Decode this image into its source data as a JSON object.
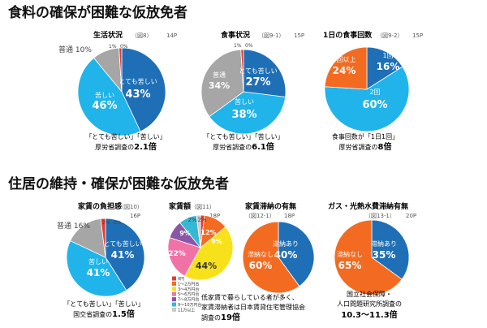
{
  "section1_title": "食料の確保が困難な仮放免者",
  "section2_title": "住居の維持・確保が困難な仮放免者",
  "colors": {
    "dark_blue": "#1f6fb6",
    "light_blue": "#20b4ea",
    "gray": "#a6a6a6",
    "red": "#e53935",
    "orange": "#f26b21",
    "yellow": "#f7e11b",
    "green": "#49b86a",
    "pink": "#f173a6",
    "purple": "#8a56a7",
    "cyan": "#35b8d4",
    "light_gray": "#c8c8c8"
  },
  "chart_data": [
    {
      "id": "seikatsu",
      "type": "pie",
      "title": "生活状況",
      "ref": "（図8）",
      "page": "14P",
      "slices": [
        {
          "label": "とても苦しい",
          "value": 43,
          "color": "#1f6fb6"
        },
        {
          "label": "苦しい",
          "value": 46,
          "color": "#20b4ea"
        },
        {
          "label": "普通",
          "value": 10,
          "color": "#a6a6a6"
        },
        {
          "label": "",
          "value": 1,
          "color": "#e53935"
        },
        {
          "label": "",
          "value": 0,
          "color": "#f26b21"
        }
      ],
      "slice_texts": [
        "とても苦しい",
        "43%",
        "苦しい",
        "46%",
        "普通 10%",
        "1%",
        "0%"
      ],
      "caption": [
        "「とても苦しい」「苦しい」",
        "厚労省調査の",
        "2.1倍"
      ]
    },
    {
      "id": "shokuji",
      "type": "pie",
      "title": "食事状況",
      "ref": "（図9-1）",
      "page": "15P",
      "slices": [
        {
          "label": "とても苦しい",
          "value": 27,
          "color": "#1f6fb6"
        },
        {
          "label": "苦しい",
          "value": 38,
          "color": "#20b4ea"
        },
        {
          "label": "普通",
          "value": 34,
          "color": "#a6a6a6"
        },
        {
          "label": "",
          "value": 1,
          "color": "#e53935"
        },
        {
          "label": "",
          "value": 0,
          "color": "#f26b21"
        }
      ],
      "slice_texts": [
        "とても苦しい",
        "27%",
        "苦しい",
        "38%",
        "普通",
        "34%",
        "1%",
        "0%"
      ],
      "caption": [
        "「とても苦しい」「苦しい」",
        "厚労省調査の",
        "6.1倍"
      ]
    },
    {
      "id": "kaisuu",
      "type": "pie",
      "title": "1日の食事回数",
      "ref": "（図9-2）",
      "page": "15P",
      "slices": [
        {
          "label": "1回",
          "value": 16,
          "color": "#1f6fb6"
        },
        {
          "label": "2回",
          "value": 60,
          "color": "#20b4ea"
        },
        {
          "label": "3回以上",
          "value": 24,
          "color": "#f26b21"
        }
      ],
      "slice_texts": [
        "1回",
        "16%",
        "2回",
        "60%",
        "3回以上",
        "24%"
      ],
      "caption": [
        "食事回数が「1日1回」",
        "厚労省調査の",
        "8倍"
      ]
    },
    {
      "id": "yachin_futan",
      "type": "pie",
      "title": "家賃の負担感",
      "ref": "（図10）",
      "page": "16P",
      "slices": [
        {
          "label": "とても苦しい",
          "value": 41,
          "color": "#1f6fb6"
        },
        {
          "label": "苦しい",
          "value": 41,
          "color": "#20b4ea"
        },
        {
          "label": "普通",
          "value": 16,
          "color": "#a6a6a6"
        },
        {
          "label": "",
          "value": 2,
          "color": "#e53935"
        },
        {
          "label": "",
          "value": 0,
          "color": "#f26b21"
        }
      ],
      "slice_texts": [
        "とても苦しい",
        "41%",
        "苦しい",
        "41%",
        "普通 16%",
        "2%",
        "0%"
      ],
      "caption": [
        "「とても苦しい」「苦しい」",
        "国交省調査の",
        "1.5倍"
      ]
    },
    {
      "id": "yachin_gaku",
      "type": "pie",
      "title": "家賃額",
      "ref": "（図11）",
      "page": "18P",
      "slices": [
        {
          "label": "0円",
          "value": 2,
          "color": "#e53935"
        },
        {
          "label": "1〜2万円台",
          "value": 12,
          "color": "#f26b21"
        },
        {
          "label": "3〜4万円台",
          "value": 44,
          "color": "#f7e11b"
        },
        {
          "label": "5〜6万円台",
          "value": 22,
          "color": "#f173a6"
        },
        {
          "label": "7〜8万円台",
          "value": 9,
          "color": "#8a56a7"
        },
        {
          "label": "9〜10万円台",
          "value": 9,
          "color": "#35b8d4"
        },
        {
          "label": "11万以上",
          "value": 2,
          "color": "#c8c8c8"
        }
      ],
      "slice_texts": [
        "2%",
        "12%",
        "44%",
        "22%",
        "9%",
        "9%",
        "2%"
      ],
      "caption": [
        "低家賃で暮らしている者が多く、",
        "家賃滞納者は日本賃貸住宅管理協会",
        "調査の",
        "19倍"
      ]
    },
    {
      "id": "yachin_tainou",
      "type": "pie",
      "title": "家賃滞納の有無",
      "ref": "（図12-1）",
      "page": "18P",
      "slices": [
        {
          "label": "滞納あり",
          "value": 40,
          "color": "#1f6fb6"
        },
        {
          "label": "滞納なし",
          "value": 60,
          "color": "#f26b21"
        }
      ],
      "slice_texts": [
        "滞納あり",
        "40%",
        "滞納なし",
        "60%"
      ]
    },
    {
      "id": "gasu",
      "type": "pie",
      "title": "ガス・光熱水費滞納有無",
      "ref": "（図13-1）",
      "page": "20P",
      "slices": [
        {
          "label": "滞納あり",
          "value": 35,
          "color": "#1f6fb6"
        },
        {
          "label": "滞納なし",
          "value": 65,
          "color": "#f26b21"
        }
      ],
      "slice_texts": [
        "滞納あり",
        "35%",
        "滞納なし",
        "65%"
      ],
      "caption": [
        "国立社会保障・",
        "人口問題研究所調査の",
        "10.3〜11.3倍"
      ]
    }
  ]
}
